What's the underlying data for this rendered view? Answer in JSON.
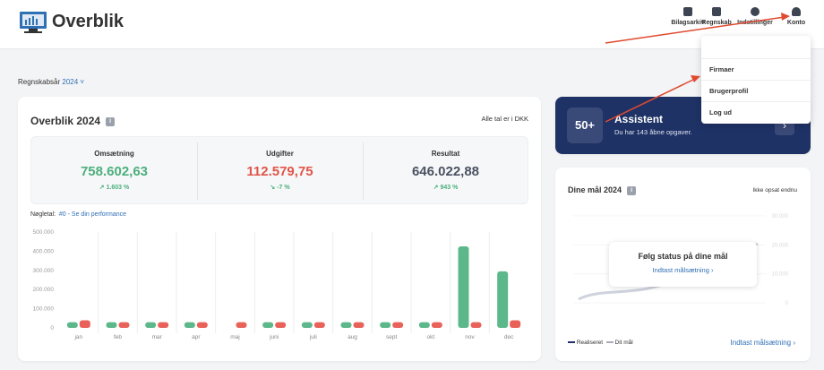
{
  "header": {
    "title": "Overblik",
    "nav": [
      "Bilagsarkiv",
      "Regnskab",
      "Indstillinger",
      "Konto"
    ]
  },
  "dropdown": {
    "items": [
      "Firmaer",
      "Brugerprofil",
      "Log ud"
    ]
  },
  "fiscal_year": {
    "label": "Regnskabsår",
    "value": "2024"
  },
  "overview": {
    "title": "Overblik 2024",
    "note": "Alle tal er i DKK",
    "kpis": [
      {
        "label": "Omsætning",
        "value": "758.602,63",
        "change": "1.603 %"
      },
      {
        "label": "Udgifter",
        "value": "112.579,75",
        "change": "-7 %"
      },
      {
        "label": "Resultat",
        "value": "646.022,88",
        "change": "943 %"
      }
    ],
    "keynumbers": {
      "label": "Nøgletal:",
      "link": "#0 - Se din performance"
    }
  },
  "chart_data": {
    "type": "bar",
    "categories": [
      "jan",
      "feb",
      "mar",
      "apr",
      "maj",
      "juni",
      "juli",
      "aug",
      "sept",
      "okt",
      "nov",
      "dec"
    ],
    "series": [
      {
        "color": "#5cb88a",
        "values": [
          30000,
          30000,
          30000,
          30000,
          0,
          30000,
          30000,
          30000,
          30000,
          30000,
          425000,
          295000
        ]
      },
      {
        "color": "#e8625a",
        "values": [
          40000,
          30000,
          30000,
          30000,
          30000,
          30000,
          30000,
          30000,
          30000,
          30000,
          30000,
          40000
        ]
      }
    ],
    "ylim": [
      0,
      500000
    ],
    "yticks": [
      0,
      {
        "value": 100000,
        "label": "100.000"
      },
      {
        "value": 200000,
        "label": "200.000"
      },
      {
        "value": 300000,
        "label": "300.000"
      },
      {
        "value": 400000,
        "label": "400.000"
      },
      {
        "value": 500000,
        "label": "500.000"
      }
    ]
  },
  "assistant": {
    "badge": "50+",
    "title": "Assistent",
    "text": "Du har 143 åbne opgaver."
  },
  "goals": {
    "title": "Dine mål 2024",
    "status": "Ikke opsat endnu",
    "ylim": [
      0,
      30000
    ],
    "yticks": [
      0,
      {
        "value": 10000,
        "label": "10.000"
      },
      {
        "value": 20000,
        "label": "20.000"
      },
      {
        "value": 30000,
        "label": "30.000"
      }
    ],
    "overlay_title": "Følg status på dine mål",
    "overlay_link": "Indtast målsætning ›",
    "legend": [
      "Realiseret",
      "Dit mål"
    ],
    "link": "Indtast målsætning ›"
  }
}
